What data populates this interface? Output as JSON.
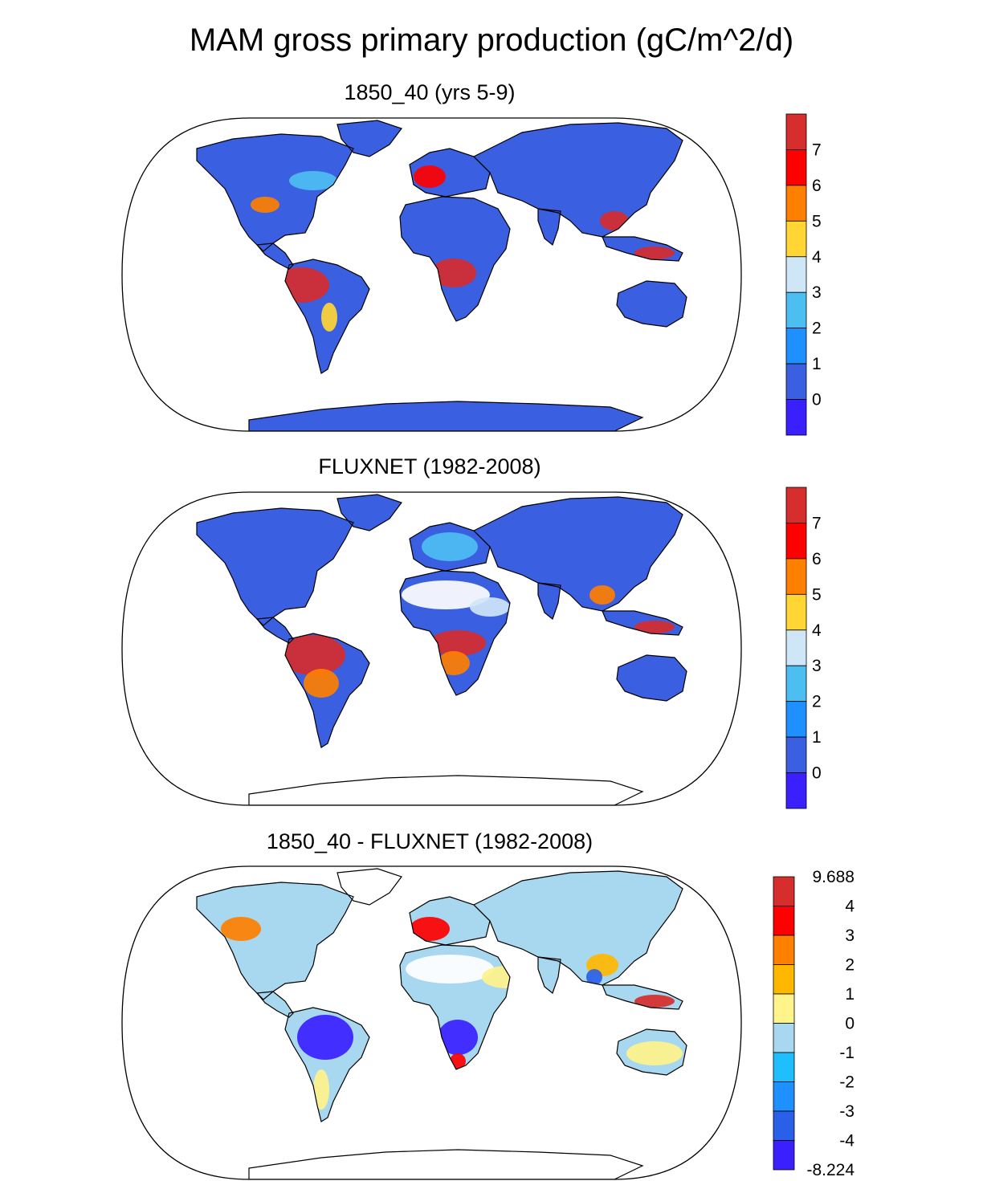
{
  "title": "MAM gross primary production (gC/m^2/d)",
  "panels": [
    {
      "title": "1850_40 (yrs 5-9)",
      "legend": {
        "labels": [
          "7",
          "6",
          "5",
          "4",
          "3",
          "2",
          "1",
          "0"
        ],
        "colors": [
          "#d62d2d",
          "#ff0000",
          "#ff7f00",
          "#ffd633",
          "#cfe6f7",
          "#4dbef2",
          "#1e90ff",
          "#3a5fe0",
          "#3a1fff"
        ]
      }
    },
    {
      "title": "FLUXNET (1982-2008)",
      "legend": {
        "labels": [
          "7",
          "6",
          "5",
          "4",
          "3",
          "2",
          "1",
          "0"
        ],
        "colors": [
          "#d62d2d",
          "#ff0000",
          "#ff7f00",
          "#ffd633",
          "#cfe6f7",
          "#4dbef2",
          "#1e90ff",
          "#3a5fe0",
          "#3a1fff"
        ]
      }
    },
    {
      "title": "1850_40 - FLUXNET (1982-2008)",
      "legend": {
        "labels": [
          "9.688",
          "4",
          "3",
          "2",
          "1",
          "0",
          "-1",
          "-2",
          "-3",
          "-4",
          "-8.224"
        ],
        "colors": [
          "#d62d2d",
          "#ff0000",
          "#ff7f00",
          "#ffb700",
          "#fff38c",
          "#a8d8f0",
          "#1ebeff",
          "#1e90ff",
          "#2a5fe8",
          "#3a1fff"
        ]
      }
    }
  ]
}
